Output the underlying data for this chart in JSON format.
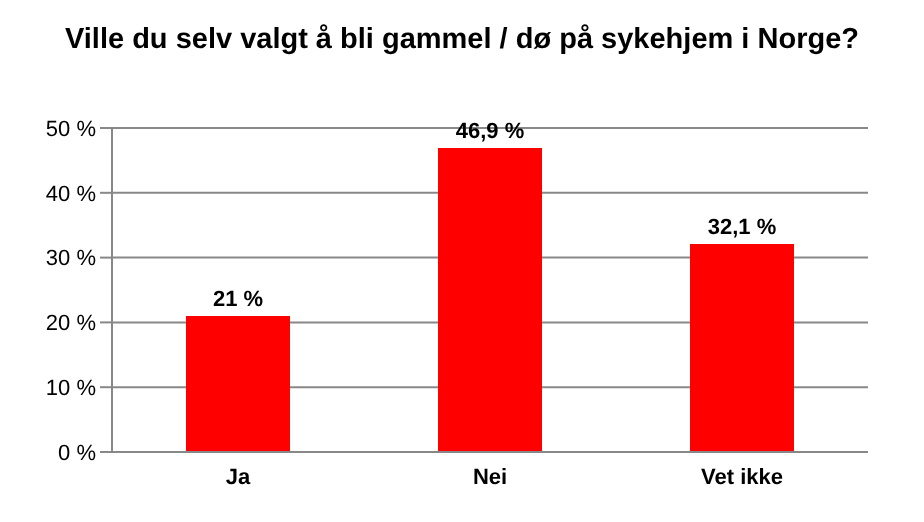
{
  "chart_data": {
    "type": "bar",
    "title": "Ville du selv valgt å bli gammel / dø på sykehjem i Norge?",
    "categories": [
      "Ja",
      "Nei",
      "Vet ikke"
    ],
    "values": [
      21,
      46.9,
      32.1
    ],
    "value_labels": [
      "21 %",
      "46,9 %",
      "32,1 %"
    ],
    "color": "#ff0000",
    "ylim": [
      0,
      50
    ],
    "yticks": [
      {
        "value": 0,
        "label": "0 %"
      },
      {
        "value": 10,
        "label": "10 %"
      },
      {
        "value": 20,
        "label": "20 %"
      },
      {
        "value": 30,
        "label": "30 %"
      },
      {
        "value": 40,
        "label": "40 %"
      },
      {
        "value": 50,
        "label": "50 %"
      }
    ],
    "grid": "y",
    "legend": false
  }
}
